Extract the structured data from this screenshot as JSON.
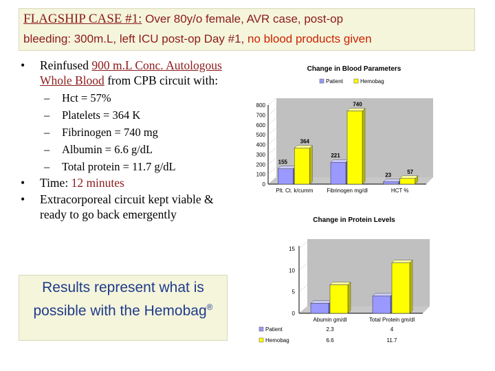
{
  "title": {
    "flagship": "FLAGSHIP  CASE #1:",
    "line1_rest": " Over 80y/o female, AVR case, post-op",
    "line2_main": "bleeding: 300m.L, left ICU  post-op Day #1, ",
    "line2_red": "no blood products given"
  },
  "bullets": {
    "b1_pre": "Reinfused ",
    "b1_hl": "900 m.L Conc. Autologous Whole Blood",
    "b1_post": " from CPB circuit with:",
    "subs": [
      "Hct = 57%",
      "Platelets = 364 K",
      "Fibrinogen = 740 mg",
      "Albumin = 6.6 g/dL",
      "Total protein = 11.7 g/dL"
    ],
    "b2_pre": "Time: ",
    "b2_hl": "12 minutes",
    "b3": "Extracorporeal circuit kept viable & ready to go back emergently",
    "dot": "•",
    "dash": "–"
  },
  "results": {
    "text": "Results represent what is possible with the Hemobag",
    "sup": "®"
  },
  "chart_data": [
    {
      "type": "bar",
      "title": "Change in Blood Parameters",
      "categories": [
        "Plt. Ct. k/cumm",
        "Fibrinogen mg/dl",
        "HCT %"
      ],
      "series": [
        {
          "name": "Patient",
          "values": [
            155,
            221,
            23
          ],
          "color": "#9999ff"
        },
        {
          "name": "Hemobag",
          "values": [
            364,
            740,
            57
          ],
          "color": "#ffff00"
        }
      ],
      "yticks": [
        "0",
        "100",
        "200",
        "300",
        "400",
        "500",
        "600",
        "700",
        "800"
      ],
      "ylim": [
        0,
        800
      ],
      "legend": "top"
    },
    {
      "type": "bar",
      "title": "Change in Protein Levels",
      "categories": [
        "Abumin gm/dl",
        "Total Protein gm/dl"
      ],
      "series": [
        {
          "name": "Patient",
          "values": [
            2.3,
            4
          ],
          "labels": [
            "2.3",
            "4"
          ],
          "color": "#9999ff"
        },
        {
          "name": "Hemobag",
          "values": [
            6.6,
            11.7
          ],
          "labels": [
            "6.6",
            "11.7"
          ],
          "color": "#ffff00"
        }
      ],
      "yticks": [
        "0",
        "5",
        "10",
        "15"
      ],
      "ylim": [
        0,
        15
      ],
      "legend": "bottom-table"
    }
  ]
}
